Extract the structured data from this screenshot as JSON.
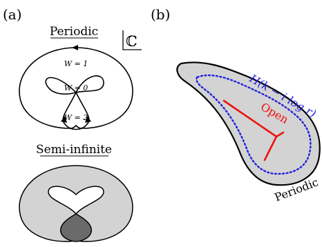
{
  "panel_a": {
    "label": "(a)",
    "periodic_title": "Periodic",
    "complex_plane_symbol": "ℂ",
    "winding_labels": [
      "W = 1",
      "W = 0",
      "W = 2"
    ],
    "semi_infinite_title": "Semi-infinite"
  },
  "panel_b": {
    "label": "(b)",
    "dotted_curve_label": "H(k − i log r)",
    "open_label": "Open",
    "periodic_label": "Periodic"
  },
  "colors": {
    "outline": "#000000",
    "fill_light": "#d3d3d3",
    "fill_dark": "#6a6a6a",
    "dotted_blue": "#1f1fe0",
    "open_red": "#ee1111"
  }
}
